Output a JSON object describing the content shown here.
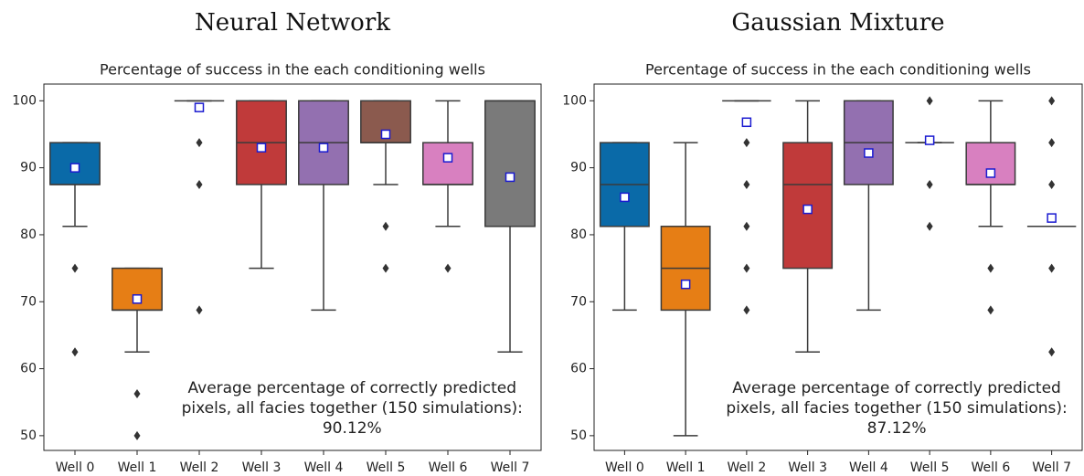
{
  "chart_data": [
    {
      "type": "box",
      "heading": "Neural Network",
      "title": "Percentage of success in the each conditioning wells",
      "categories": [
        "Well 0",
        "Well 1",
        "Well 2",
        "Well 3",
        "Well 4",
        "Well 5",
        "Well 6",
        "Well 7"
      ],
      "colors": [
        "#0a6aa8",
        "#e67e15",
        "#2a9a62",
        "#c03a3a",
        "#9370b0",
        "#8b5a4e",
        "#d880c0",
        "#7a7a7a"
      ],
      "boxes": [
        {
          "whislo": 81.25,
          "q1": 87.5,
          "med": 87.5,
          "q3": 93.75,
          "whishi": 93.75,
          "mean": 90,
          "fliers": [
            75,
            62.5
          ]
        },
        {
          "whislo": 62.5,
          "q1": 68.75,
          "med": 68.75,
          "q3": 75,
          "whishi": 75,
          "mean": 70.4,
          "fliers": [
            56.25,
            50
          ]
        },
        {
          "whislo": 100,
          "q1": 100,
          "med": 100,
          "q3": 100,
          "whishi": 100,
          "mean": 99,
          "fliers": [
            93.75,
            87.5,
            68.75
          ]
        },
        {
          "whislo": 75,
          "q1": 87.5,
          "med": 93.75,
          "q3": 100,
          "whishi": 100,
          "mean": 93,
          "fliers": []
        },
        {
          "whislo": 68.75,
          "q1": 87.5,
          "med": 93.75,
          "q3": 100,
          "whishi": 100,
          "mean": 93,
          "fliers": []
        },
        {
          "whislo": 87.5,
          "q1": 93.75,
          "med": 93.75,
          "q3": 100,
          "whishi": 100,
          "mean": 95,
          "fliers": [
            81.25,
            75
          ]
        },
        {
          "whislo": 81.25,
          "q1": 87.5,
          "med": 87.5,
          "q3": 93.75,
          "whishi": 100,
          "mean": 91.5,
          "fliers": [
            75
          ]
        },
        {
          "whislo": 62.5,
          "q1": 81.25,
          "med": 100,
          "q3": 100,
          "whishi": 100,
          "mean": 88.6,
          "fliers": []
        }
      ],
      "annotation": [
        "Average percentage of correctly predicted",
        "pixels, all facies together (150 simulations):",
        "90.12%"
      ],
      "ylim": [
        47.8,
        102.5
      ],
      "yticks": [
        50,
        60,
        70,
        80,
        90,
        100
      ]
    },
    {
      "type": "box",
      "heading": "Gaussian Mixture",
      "title": "Percentage of success in the each conditioning wells",
      "categories": [
        "Well 0",
        "Well 1",
        "Well 2",
        "Well 3",
        "Well 4",
        "Well 5",
        "Well 6",
        "Well 7"
      ],
      "colors": [
        "#0a6aa8",
        "#e67e15",
        "#2a9a62",
        "#c03a3a",
        "#9370b0",
        "#8b5a4e",
        "#d880c0",
        "#7a7a7a"
      ],
      "boxes": [
        {
          "whislo": 68.75,
          "q1": 81.25,
          "med": 87.5,
          "q3": 93.75,
          "whishi": 93.75,
          "mean": 85.6,
          "fliers": []
        },
        {
          "whislo": 50,
          "q1": 68.75,
          "med": 75,
          "q3": 81.25,
          "whishi": 93.75,
          "mean": 72.6,
          "fliers": []
        },
        {
          "whislo": 100,
          "q1": 100,
          "med": 100,
          "q3": 100,
          "whishi": 100,
          "mean": 96.8,
          "fliers": [
            93.75,
            87.5,
            81.25,
            75,
            68.75
          ]
        },
        {
          "whislo": 62.5,
          "q1": 75,
          "med": 87.5,
          "q3": 93.75,
          "whishi": 100,
          "mean": 83.8,
          "fliers": []
        },
        {
          "whislo": 68.75,
          "q1": 87.5,
          "med": 93.75,
          "q3": 100,
          "whishi": 100,
          "mean": 92.2,
          "fliers": []
        },
        {
          "whislo": 93.75,
          "q1": 93.75,
          "med": 93.75,
          "q3": 93.75,
          "whishi": 93.75,
          "mean": 94.1,
          "fliers": [
            100,
            87.5,
            81.25
          ]
        },
        {
          "whislo": 81.25,
          "q1": 87.5,
          "med": 87.5,
          "q3": 93.75,
          "whishi": 100,
          "mean": 89.2,
          "fliers": [
            75,
            68.75
          ]
        },
        {
          "whislo": 81.25,
          "q1": 81.25,
          "med": 81.25,
          "q3": 81.25,
          "whishi": 81.25,
          "mean": 82.5,
          "fliers": [
            100,
            93.75,
            87.5,
            75,
            62.5
          ]
        }
      ],
      "annotation": [
        "Average percentage of correctly predicted",
        "pixels, all facies together (150 simulations):",
        "87.12%"
      ],
      "ylim": [
        47.8,
        102.5
      ],
      "yticks": [
        50,
        60,
        70,
        80,
        90,
        100
      ]
    }
  ]
}
